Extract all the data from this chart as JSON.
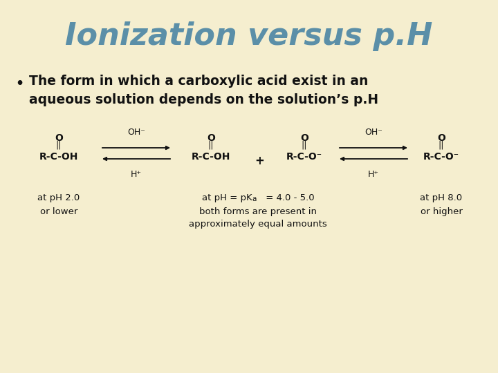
{
  "background_color": "#f5eecf",
  "title": "Ionization versus p.H",
  "title_color": "#5b8fa8",
  "title_fontsize": 32,
  "title_weight": "bold",
  "title_style": "italic",
  "bullet_text_line1": "The form in which a carboxylic acid exist in an",
  "bullet_text_line2": "aqueous solution depends on the solution’s p.H",
  "bullet_fontsize": 13.5,
  "bullet_weight": "bold",
  "text_color": "#111111",
  "diagram_color": "#111111",
  "diag_fontsize": 10,
  "label_fontsize": 9.5
}
